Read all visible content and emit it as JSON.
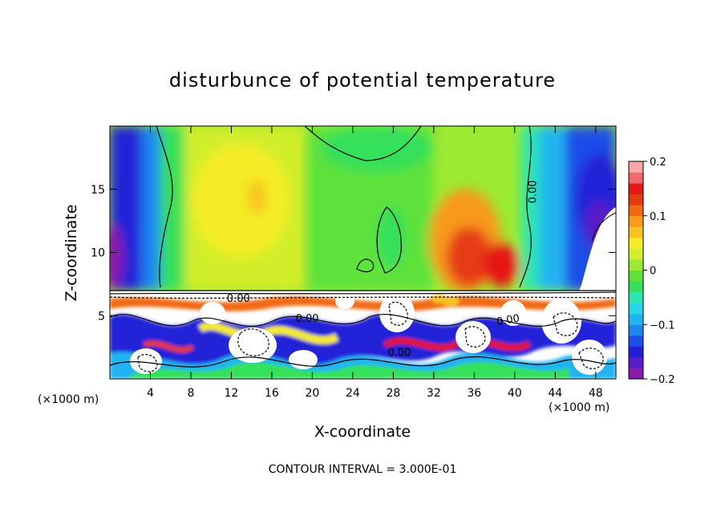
{
  "chart_data": {
    "type": "heatmap",
    "title": "disturbunce of potential temperature",
    "xlabel": "X-coordinate",
    "ylabel": "Z-coordinate",
    "x_unit_label": "(×1000 m)",
    "x_unit_label_right": "(×1000 m)",
    "contour_interval_text": "CONTOUR INTERVAL = 3.000E-01",
    "xlim": [
      0,
      50
    ],
    "ylim": [
      0,
      20
    ],
    "x_ticks": [
      4,
      8,
      12,
      16,
      20,
      24,
      28,
      32,
      36,
      40,
      44,
      48
    ],
    "y_ticks": [
      5,
      10,
      15
    ],
    "colorbar": {
      "range": [
        -0.2,
        0.2
      ],
      "tick_values": [
        -0.2,
        -0.1,
        0,
        0.1,
        0.2
      ],
      "tick_labels": [
        "−0.2",
        "−0.1",
        "0",
        "0.1",
        "0.2"
      ],
      "colors": [
        "#8a1aa8",
        "#5a1ec8",
        "#2020d8",
        "#1e4ee8",
        "#1e86f0",
        "#20b4f2",
        "#26d6e6",
        "#2ee6b0",
        "#36e05a",
        "#5ee23a",
        "#9cea32",
        "#d2ee2c",
        "#f6ec28",
        "#f8c422",
        "#f89a1c",
        "#f06a16",
        "#e63a12",
        "#e61818",
        "#f06a6a",
        "#f8a6a6"
      ]
    },
    "contour_labels": [
      {
        "text": "0.00",
        "x": 42.1,
        "y": 14.8,
        "rotate": -90
      },
      {
        "text": "0.00",
        "x": 12.7,
        "y": 6.1,
        "rotate": 0
      },
      {
        "text": "0.00",
        "x": 19.5,
        "y": 4.5,
        "rotate": 0
      },
      {
        "text": "0.00",
        "x": 39.4,
        "y": 4.4,
        "rotate": -10
      },
      {
        "text": "0.00",
        "x": 28.6,
        "y": 1.8,
        "rotate": 0
      }
    ]
  }
}
